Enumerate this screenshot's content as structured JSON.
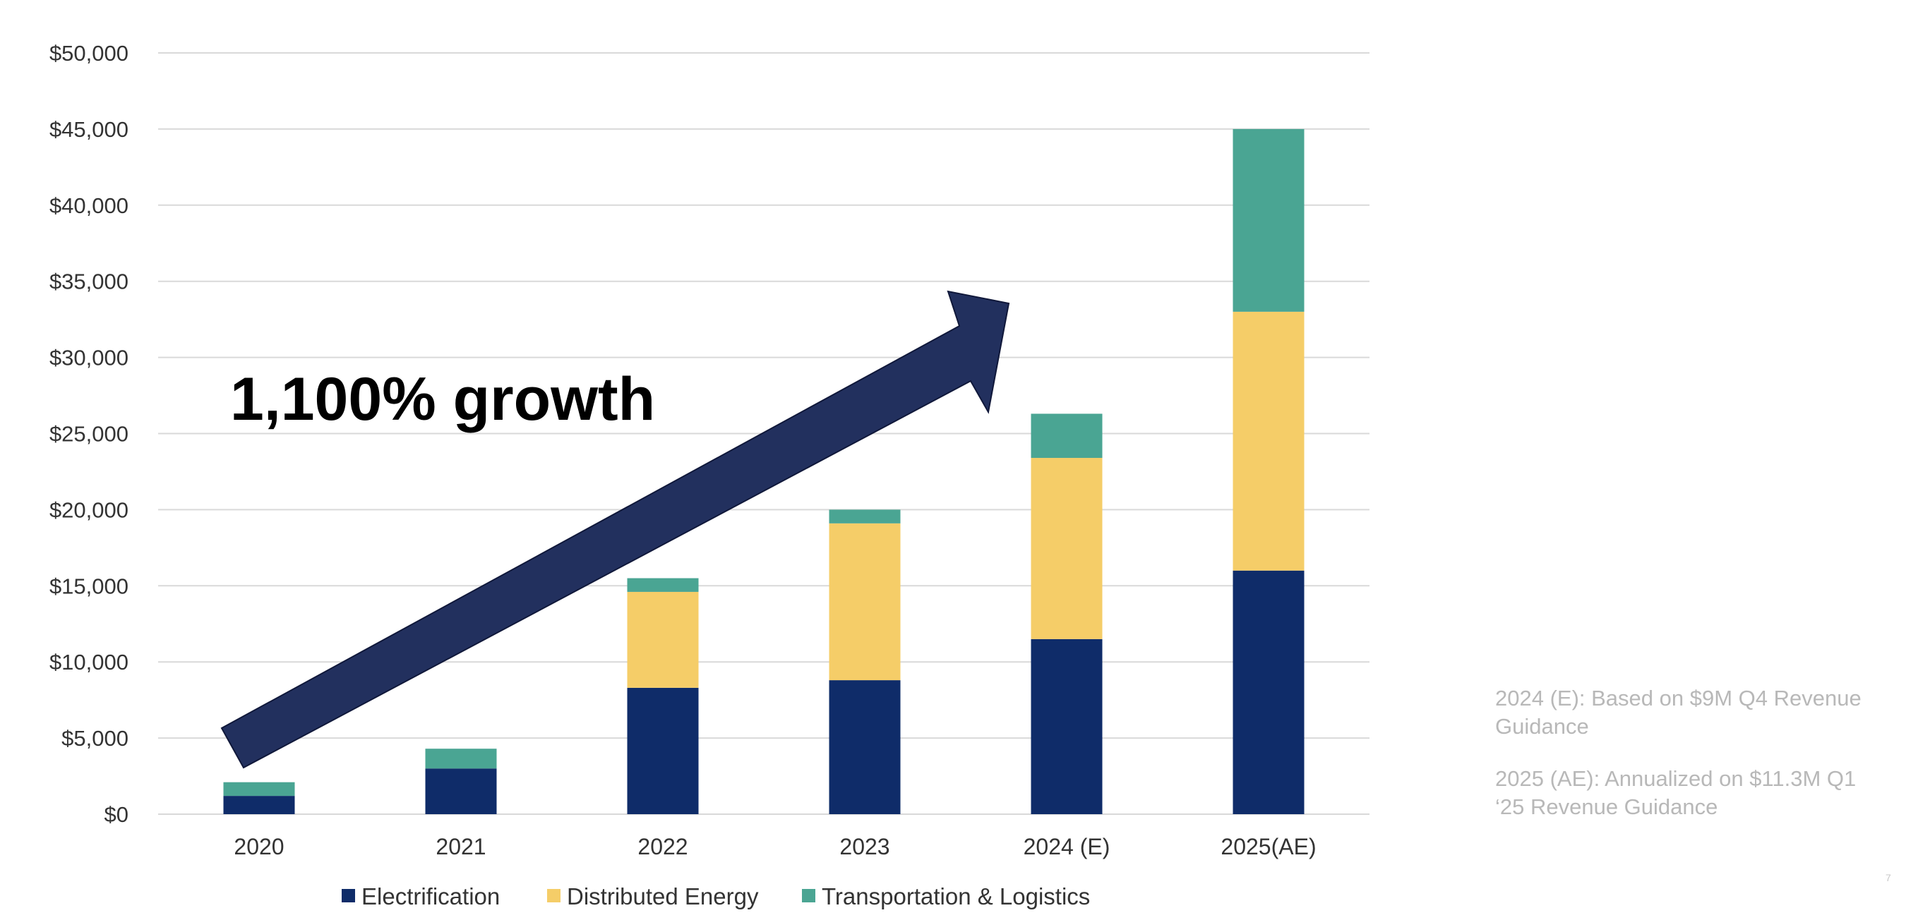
{
  "chart_data": {
    "type": "bar",
    "stacked": true,
    "categories": [
      "2020",
      "2021",
      "2022",
      "2023",
      "2024 (E)",
      "2025(AE)"
    ],
    "series": [
      {
        "name": "Electrification",
        "color": "#0f2c69",
        "values": [
          1200,
          3000,
          8300,
          8800,
          11500,
          16000
        ]
      },
      {
        "name": "Distributed Energy",
        "color": "#f5cd68",
        "values": [
          0,
          0,
          6300,
          10300,
          11900,
          17000
        ]
      },
      {
        "name": "Transportation & Logistics",
        "color": "#4aa593",
        "values": [
          900,
          1300,
          900,
          900,
          2900,
          12000
        ]
      }
    ],
    "ylim": [
      0,
      50000
    ],
    "yticks": [
      "$0",
      "$5,000",
      "$10,000",
      "$15,000",
      "$20,000",
      "$25,000",
      "$30,000",
      "$35,000",
      "$40,000",
      "$45,000",
      "$50,000"
    ],
    "grid": true,
    "legend_position": "bottom",
    "annotation": "1,100% growth",
    "arrow_color": "#22305e"
  },
  "notes": [
    "2024 (E): Based on $9M Q4 Revenue Guidance",
    "2025 (AE): Annualized on $11.3M Q1 ‘25 Revenue Guidance"
  ],
  "page_number": "7"
}
